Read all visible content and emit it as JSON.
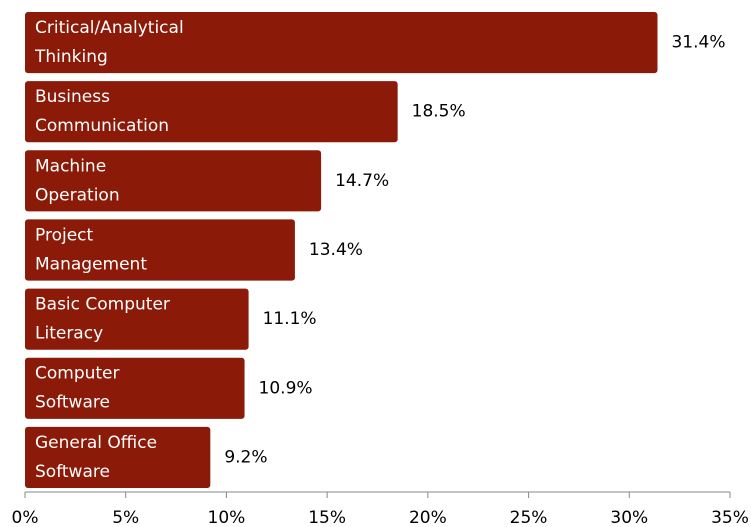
{
  "chart_data": {
    "type": "hbar",
    "categories": [
      [
        "Critical/Analytical",
        "Thinking"
      ],
      [
        "Business",
        "Communication"
      ],
      [
        "Machine",
        "Operation"
      ],
      [
        "Project",
        "Management"
      ],
      [
        "Basic Computer",
        "Literacy"
      ],
      [
        "Computer",
        "Software"
      ],
      [
        "General Office",
        "Software"
      ]
    ],
    "values": [
      31.4,
      18.5,
      14.7,
      13.4,
      11.1,
      10.9,
      9.2
    ],
    "value_labels": [
      "31.4%",
      "18.5%",
      "14.7%",
      "13.4%",
      "11.1%",
      "10.9%",
      "9.2%"
    ],
    "color": "#8b1a08",
    "xlim": [
      0,
      35
    ],
    "xticks": [
      {
        "value": 0,
        "label": "0%"
      },
      {
        "value": 5,
        "label": "5%"
      },
      {
        "value": 10,
        "label": "10%"
      },
      {
        "value": 15,
        "label": "15%"
      },
      {
        "value": 20,
        "label": "20%"
      },
      {
        "value": 25,
        "label": "25%"
      },
      {
        "value": 30,
        "label": "30%"
      },
      {
        "value": 35,
        "label": "35%"
      }
    ]
  }
}
